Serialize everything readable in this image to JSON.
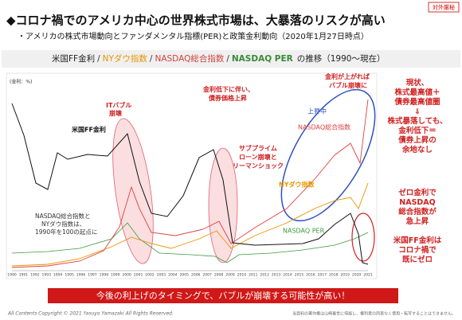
{
  "header": {
    "badge": "対外厳秘",
    "title": "◆コロナ禍でのアメリカ中心の世界株式市場は、大暴落のリスクが高い",
    "subtitle": "・アメリカの株式市場動向とファンダメンタル指標(PER)と政策金利動向（2020年1月27日時点）"
  },
  "banner": {
    "parts": [
      "米国FF金利",
      "/",
      "NYダウ指数",
      "/",
      "NASDAQ総合指数",
      "/",
      "NASDAQ PER",
      "の推移（1990～現在）"
    ]
  },
  "chart": {
    "unit": "(金利：%)",
    "years": [
      "1990",
      "1991",
      "1992",
      "1993",
      "1994",
      "1995",
      "1996",
      "1997",
      "1998",
      "1999",
      "2000",
      "2001",
      "2002",
      "2003",
      "2004",
      "2005",
      "2006",
      "2007",
      "2008",
      "2009",
      "2010",
      "2011",
      "2012",
      "2013",
      "2014",
      "2015",
      "2016",
      "2017",
      "2018",
      "2019",
      "2020",
      "2021"
    ],
    "annotations": {
      "it_bubble": [
        "ITバブル",
        "崩壊"
      ],
      "ff_rate": [
        "米国FF金利"
      ],
      "bond": [
        "金利低下に伴い、",
        "債券価格上昇"
      ],
      "subprime": [
        "サブプライム",
        "ローン崩壊と",
        "リーマンショック"
      ],
      "rising": [
        "上昇中"
      ],
      "rate_up": [
        "金利が上がれば",
        "バブル崩壊に"
      ],
      "nasdaq": [
        "NASDAQ総合指数"
      ],
      "dow": [
        "NYダウ指数"
      ],
      "per": [
        "NASDAQ PER"
      ],
      "base": [
        "NASDAQ総合指数と",
        "NYダウ指数は、",
        "1990年を100の起点に"
      ]
    }
  },
  "side": {
    "now": [
      "現状、",
      "株式最高値＋",
      "債券最高値圏",
      "⇓",
      "株式暴落しても、",
      "金利低下＝",
      "債券上昇の",
      "余地なし"
    ],
    "zero": [
      "ゼロ金利で",
      "NASDAQ",
      "総合指数が",
      "急上昇"
    ],
    "ff_zero": [
      "米国FF金利は",
      "コロナ禍で",
      "既にゼロ"
    ]
  },
  "footer": {
    "message": "今後の利上げのタイミングで、バブルが崩壊する可能性が高い！",
    "copyright": "All Contents Copyright © 2021 Yasuyo Yamazaki All Rights Reserved.",
    "notice": "当資料の著作権は山崎養世に帰属し、権利者の同意なく使用・転写することはできません。"
  }
}
